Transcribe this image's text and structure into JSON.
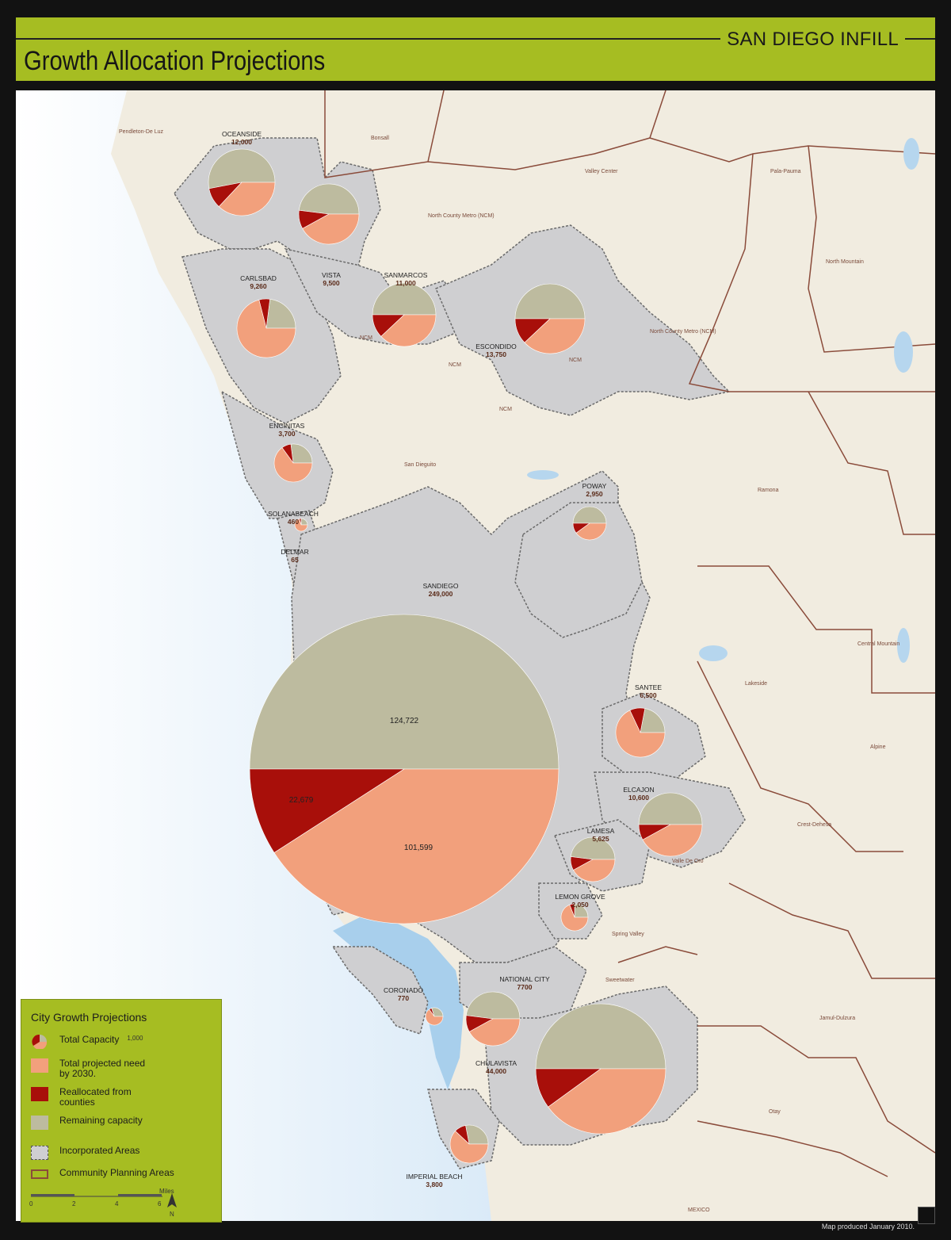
{
  "header": {
    "brand": "SAN DIEGO INFILL",
    "title": "Growth Allocation Projections"
  },
  "colors": {
    "header_bg": "#a6bd22",
    "land": "#f1ece0",
    "water": "#a8cfec",
    "incorporated": "#cfcfd1",
    "remaining": "#bdbb9f",
    "projected": "#f2a07c",
    "reallocated": "#a80f0a",
    "cpa_boundary": "#8a4b3a"
  },
  "cities": [
    {
      "name": "OCEANSIDE",
      "capacity": "12,000",
      "remaining": 0.53,
      "reallocated": 0.1
    },
    {
      "name": "VISTA",
      "capacity": "9,500",
      "remaining": 0.48,
      "reallocated": 0.1
    },
    {
      "name": "CARLSBAD",
      "capacity": "9,260",
      "remaining": 0.23,
      "reallocated": 0.06
    },
    {
      "name": "SANMARCOS",
      "capacity": "11,000",
      "remaining": 0.5,
      "reallocated": 0.12
    },
    {
      "name": "ESCONDIDO",
      "capacity": "13,750",
      "remaining": 0.5,
      "reallocated": 0.12
    },
    {
      "name": "ENCINITAS",
      "capacity": "3,700",
      "remaining": 0.27,
      "reallocated": 0.08
    },
    {
      "name": "SOLANABEACH",
      "capacity": "460",
      "remaining": 0.25,
      "reallocated": 0.05
    },
    {
      "name": "DELMAR",
      "capacity": "65",
      "remaining": 0,
      "reallocated": 0
    },
    {
      "name": "POWAY",
      "capacity": "2,950",
      "remaining": 0.5,
      "reallocated": 0.1
    },
    {
      "name": "SANDIEGO",
      "capacity": "249,000",
      "remaining": 0.5,
      "reallocated": 0.091
    },
    {
      "name": "SANTEE",
      "capacity": "6,500",
      "remaining": 0.22,
      "reallocated": 0.1
    },
    {
      "name": "ELCAJON",
      "capacity": "10,600",
      "remaining": 0.5,
      "reallocated": 0.08
    },
    {
      "name": "LAMESA",
      "capacity": "5,625",
      "remaining": 0.48,
      "reallocated": 0.1
    },
    {
      "name": "LEMON GROVE",
      "capacity": "2,050",
      "remaining": 0.25,
      "reallocated": 0.06
    },
    {
      "name": "CORONADO",
      "capacity": "770",
      "remaining": 0.3,
      "reallocated": 0.05
    },
    {
      "name": "NATIONAL CITY",
      "capacity": "7700",
      "remaining": 0.48,
      "reallocated": 0.1
    },
    {
      "name": "CHULAVISTA",
      "capacity": "44,000",
      "remaining": 0.5,
      "reallocated": 0.1
    },
    {
      "name": "IMPERIAL BEACH",
      "capacity": "3,800",
      "remaining": 0.28,
      "reallocated": 0.1
    }
  ],
  "sandiego_values": {
    "remaining": "124,722",
    "reallocated": "22,679",
    "projected": "101,599"
  },
  "places": [
    "Pendleton-De Luz",
    "Bonsall",
    "Valley Center",
    "Pala-Pauma",
    "North County Metro (NCM)",
    "North Mountain",
    "North County Metro (NCM)",
    "NCM",
    "NCM",
    "NCM",
    "NCM",
    "San Dieguito",
    "Ramona",
    "Central Mountain",
    "Lakeside",
    "Alpine",
    "Crest-Dehesa",
    "Valle De Oro",
    "Spring Valley",
    "Sweetwater",
    "Jamul-Dulzura",
    "Otay",
    "MEXICO"
  ],
  "legend": {
    "title": "City Growth Projections",
    "total_capacity": "Total Capacity",
    "total_capacity_example": "1,000",
    "projected": "Total projected need by 2030.",
    "reallocated": "Reallocated from counties",
    "remaining": "Remaining capacity",
    "incorporated": "Incorporated Areas",
    "cpa": "Community Planning Areas",
    "scale_ticks": [
      "0",
      "2",
      "4",
      "6"
    ],
    "scale_unit": "Miles",
    "north": "N"
  },
  "footer": {
    "produced": "Map produced January 2010."
  }
}
